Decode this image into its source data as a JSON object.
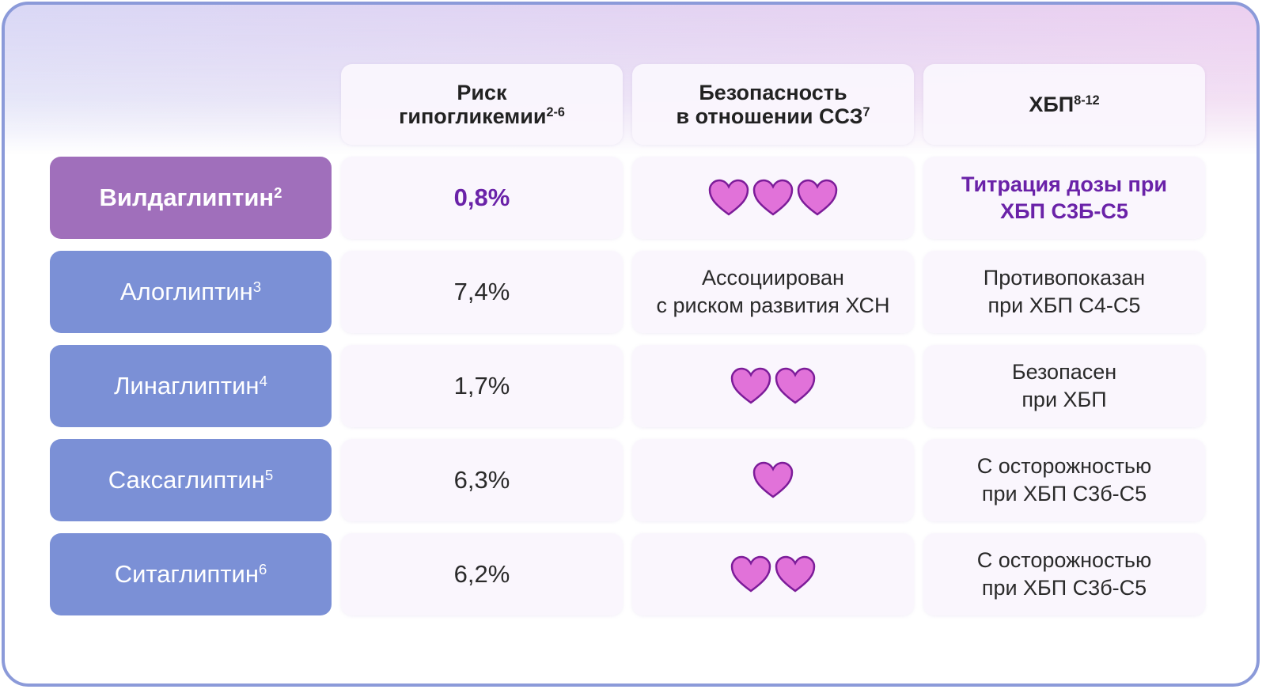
{
  "header": {
    "corner": null,
    "columns": [
      {
        "lines": [
          "Риск",
          "гипогликемии"
        ],
        "sup": "2-6"
      },
      {
        "lines": [
          "Безопасность",
          "в отношении ССЗ"
        ],
        "sup": "7"
      },
      {
        "lines": [
          "ХБП"
        ],
        "sup": "8-12"
      }
    ]
  },
  "rows": [
    {
      "name": "Вилдаглиптин",
      "sup": "2",
      "risk": "0,8%",
      "cv": {
        "hearts": 3
      },
      "ckd": [
        "Титрация дозы при",
        "ХБП С3Б-С5"
      ],
      "highlight": true
    },
    {
      "name": "Алоглиптин",
      "sup": "3",
      "risk": "7,4%",
      "cv": {
        "lines": [
          "Ассоциирован",
          "с риском развития ХСН"
        ]
      },
      "ckd": [
        "Противопоказан",
        "при ХБП С4-С5"
      ],
      "highlight": false
    },
    {
      "name": "Линаглиптин",
      "sup": "4",
      "risk": "1,7%",
      "cv": {
        "hearts": 2
      },
      "ckd": [
        "Безопасен",
        "при ХБП"
      ],
      "highlight": false
    },
    {
      "name": "Саксаглиптин",
      "sup": "5",
      "risk": "6,3%",
      "cv": {
        "hearts": 1
      },
      "ckd": [
        "С осторожностью",
        "при ХБП С3б-С5"
      ],
      "highlight": false
    },
    {
      "name": "Ситаглиптин",
      "sup": "6",
      "risk": "6,2%",
      "cv": {
        "hearts": 2
      },
      "ckd": [
        "С осторожностью",
        "при ХБП С3б-С5"
      ],
      "highlight": false
    }
  ]
}
